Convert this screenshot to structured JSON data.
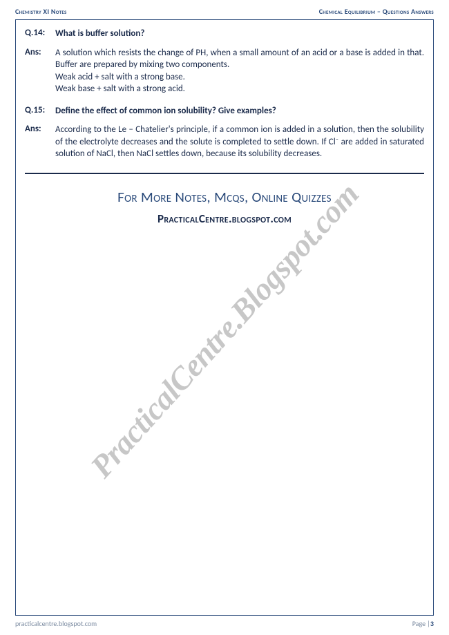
{
  "header": {
    "left": "Chemistry XI Notes",
    "right": "Chemical Equilibrium – Questions Answers"
  },
  "footer": {
    "site": "practicalcentre.blogspot.com",
    "page_label": "Page |",
    "page_number": "3"
  },
  "watermark": "PracticalCentre.Blogspot.com",
  "qa": [
    {
      "q_label": "Q.14:",
      "q_text": "What is buffer solution?",
      "a_label": "Ans:",
      "a_lines": [
        "A solution which resists the change of PH, when a small amount of an acid or a base is added in that. Buffer are prepared by mixing two components.",
        "Weak acid + salt with a strong base.",
        "Weak base + salt with a strong acid."
      ]
    },
    {
      "q_label": "Q.15:",
      "q_text": "Define the effect of common ion solubility? Give examples?",
      "a_label": "Ans:",
      "a_lines": [
        "According to the Le – Chatelier's principle, if a common ion is added in a solution, then the solubility of the electrolyte decreases and the solute is completed to settle down. If Cl⁻ are added in saturated solution of NaCl, then NaCl settles down, because its solubility decreases."
      ]
    }
  ],
  "promo": {
    "line1": "For More Notes, Mcqs, Online Quizzes",
    "line2": "PracticalCentre.blogspot.com"
  },
  "colors": {
    "accent": "#2a4a7a",
    "text": "#1a2a4a",
    "muted": "#7a8aa0",
    "watermark": "rgba(80,80,80,0.32)",
    "background": "#ffffff"
  }
}
